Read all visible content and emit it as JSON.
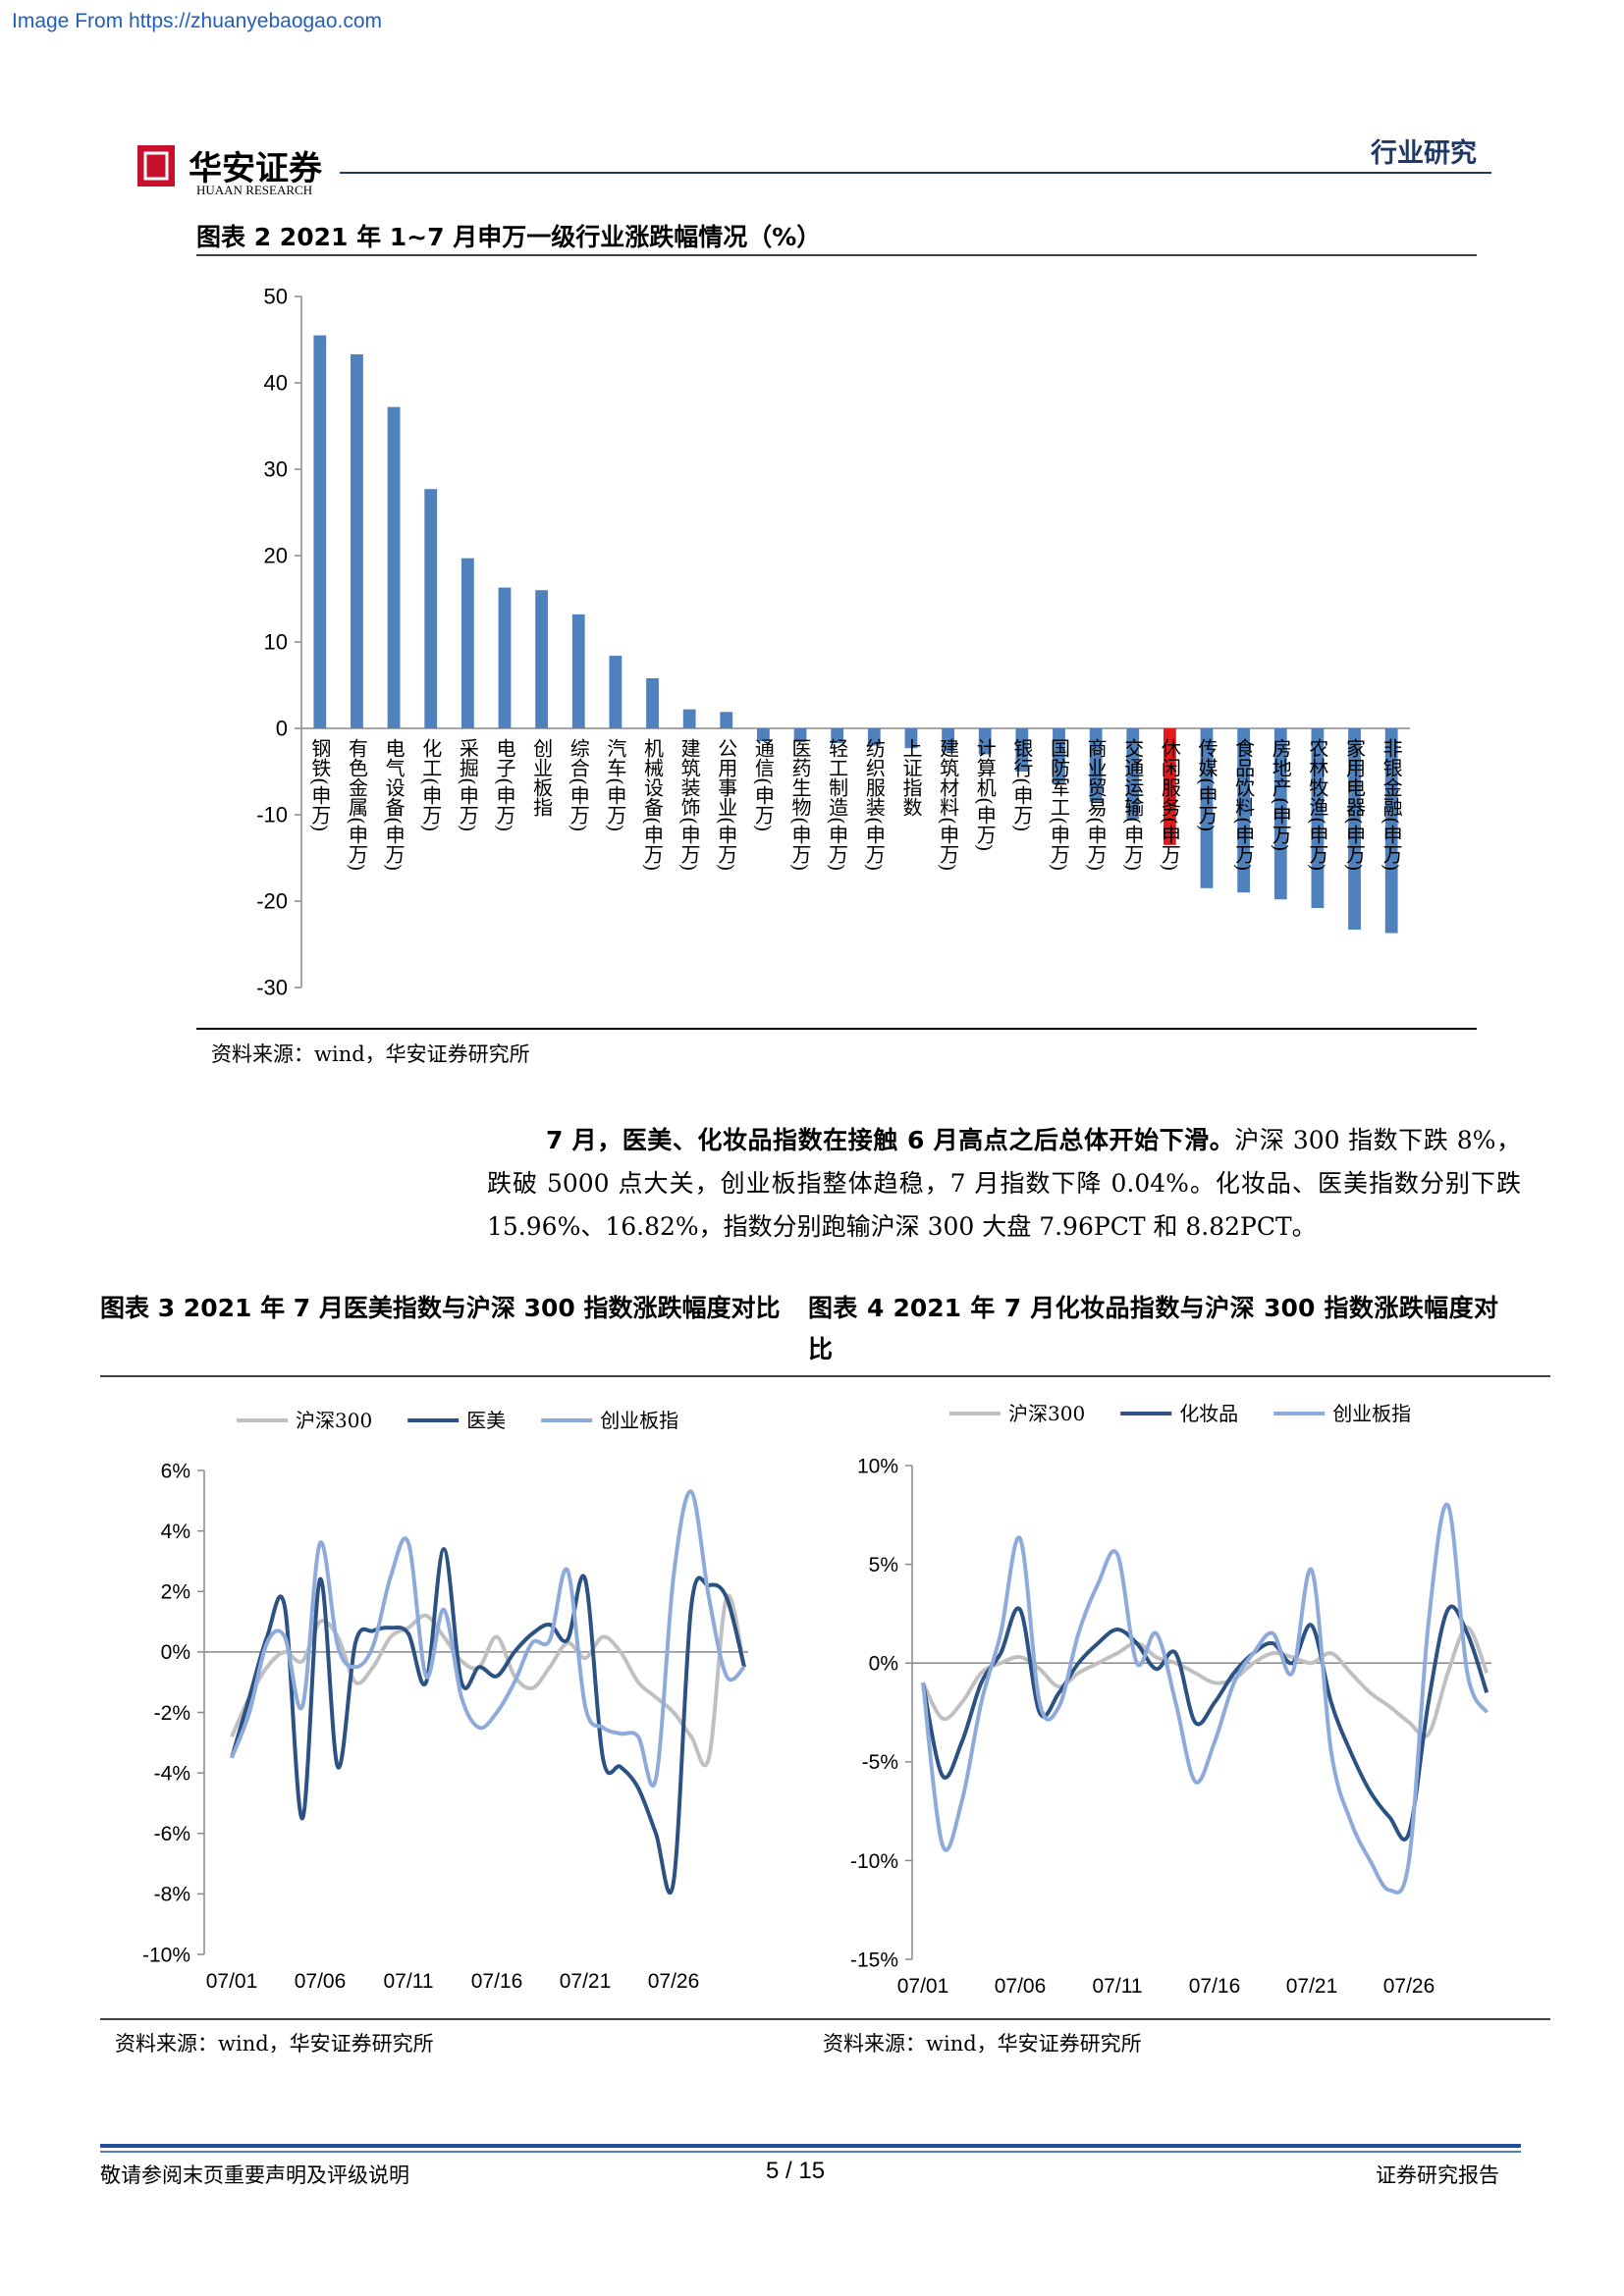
{
  "watermark": "Image From https://zhuanyebaogao.com",
  "header": {
    "logo": "华安证券",
    "logo_en": "HUAAN RESEARCH",
    "section": "行业研究"
  },
  "paragraph": {
    "lead": "7 月，医美、化妆品指数在接触 6 月高点之后总体开始下滑。",
    "text": "沪深 300 指数下跌 8%，跌破 5000 点大关，创业板指整体趋稳，7 月指数下降 0.04%。化妆品、医美指数分别下跌 15.96%、16.82%，指数分别跑输沪深 300 大盘 7.96PCT 和 8.82PCT。"
  },
  "chart_data": [
    {
      "type": "bar",
      "title": "图表 2 2021 年 1~7 月申万一级行业涨跌幅情况（%）",
      "source": "资料来源：wind，华安证券研究所",
      "categories": [
        "钢铁(申万)",
        "有色金属(申万)",
        "电气设备(申万)",
        "化工(申万)",
        "采掘(申万)",
        "电子(申万)",
        "创业板指",
        "综合(申万)",
        "汽车(申万)",
        "机械设备(申万)",
        "建筑装饰(申万)",
        "公用事业(申万)",
        "通信(申万)",
        "医药生物(申万)",
        "轻工制造(申万)",
        "纺织服装(申万)",
        "上证指数",
        "建筑材料(申万)",
        "计算机(申万)",
        "银行(申万)",
        "国防军工(申万)",
        "商业贸易(申万)",
        "交通运输(申万)",
        "休闲服务(申万)",
        "传媒(申万)",
        "食品饮料(申万)",
        "房地产(申万)",
        "农林牧渔(申万)",
        "家用电器(申万)",
        "非银金融(申万)"
      ],
      "values": [
        45.5,
        43.3,
        37.2,
        27.7,
        19.7,
        16.3,
        16.0,
        13.2,
        8.4,
        5.8,
        2.2,
        1.9,
        -1.5,
        -1.6,
        -1.7,
        -2.0,
        -2.3,
        -2.6,
        -3.0,
        -5.0,
        -6.5,
        -8.5,
        -10.5,
        -13.5,
        -18.5,
        -19.0,
        -19.8,
        -20.8,
        -23.3,
        -23.7
      ],
      "colors": [
        "#4f81bd",
        "#4f81bd",
        "#4f81bd",
        "#4f81bd",
        "#4f81bd",
        "#4f81bd",
        "#4f81bd",
        "#4f81bd",
        "#4f81bd",
        "#4f81bd",
        "#4f81bd",
        "#4f81bd",
        "#4f81bd",
        "#4f81bd",
        "#4f81bd",
        "#4f81bd",
        "#4f81bd",
        "#4f81bd",
        "#4f81bd",
        "#4f81bd",
        "#4f81bd",
        "#4f81bd",
        "#4f81bd",
        "#e31a1c",
        "#4f81bd",
        "#4f81bd",
        "#4f81bd",
        "#4f81bd",
        "#4f81bd",
        "#4f81bd"
      ],
      "ylim": [
        -30,
        50
      ],
      "yticks": [
        50,
        40,
        30,
        20,
        10,
        0,
        -10,
        -20,
        -30
      ]
    },
    {
      "type": "line",
      "title": "图表 3 2021 年 7 月医美指数与沪深 300 指数涨跌幅度对比",
      "source": "资料来源：wind，华安证券研究所",
      "categories": [
        "07/01",
        null,
        null,
        null,
        null,
        "07/06",
        null,
        null,
        null,
        null,
        "07/11",
        null,
        null,
        null,
        null,
        "07/16",
        null,
        null,
        null,
        null,
        "07/21",
        null,
        null,
        null,
        null,
        "07/26",
        null,
        null,
        null,
        null
      ],
      "series": [
        {
          "name": "沪深300",
          "color": "#c0c0c0",
          "values": [
            -2.8,
            -1.5,
            -0.5,
            0,
            -0.3,
            1.0,
            0.5,
            -1.0,
            -0.5,
            0.5,
            0.8,
            1.2,
            0.5,
            -0.3,
            -0.5,
            0.5,
            -0.8,
            -1.2,
            -0.5,
            0.3,
            -0.2,
            0.5,
            0,
            -1.0,
            -1.5,
            -2.0,
            -2.8,
            -3.5,
            1.8,
            -0.5
          ]
        },
        {
          "name": "医美",
          "color": "#2b5282",
          "values": [
            -3.5,
            -1.5,
            0.5,
            1.5,
            -5.5,
            2.4,
            -3.8,
            0.3,
            0.7,
            0.8,
            0.6,
            -1.0,
            3.4,
            -1.0,
            -0.5,
            -0.8,
            0,
            0.6,
            0.9,
            0.4,
            2.4,
            -3.5,
            -3.8,
            -4.5,
            -6.0,
            -7.6,
            1.5,
            2.2,
            1.8,
            -0.5
          ]
        },
        {
          "name": "创业板指",
          "color": "#8eaadb",
          "values": [
            -3.5,
            -2.0,
            0.3,
            0.5,
            -1.8,
            3.6,
            0.2,
            -0.5,
            0.2,
            2.5,
            3.6,
            -0.8,
            1.4,
            -1.5,
            -2.5,
            -2.0,
            -1.0,
            0.3,
            0.4,
            2.7,
            -1.8,
            -2.5,
            -2.7,
            -2.8,
            -4.2,
            2.5,
            5.3,
            1.8,
            -0.8,
            -0.5
          ]
        }
      ],
      "ylim": [
        -10,
        6
      ],
      "yticks": [
        {
          "value": 6,
          "label": "6%"
        },
        {
          "value": 4,
          "label": "4%"
        },
        {
          "value": 2,
          "label": "2%"
        },
        {
          "value": 0,
          "label": "0%"
        },
        {
          "value": -2,
          "label": "-2%"
        },
        {
          "value": -4,
          "label": "-4%"
        },
        {
          "value": -6,
          "label": "-6%"
        },
        {
          "value": -8,
          "label": "-8%"
        },
        {
          "value": -10,
          "label": "-10%"
        }
      ]
    },
    {
      "type": "line",
      "title": "图表 4 2021 年 7 月化妆品指数与沪深 300 指数涨跌幅度对比",
      "source": "资料来源：wind，华安证券研究所",
      "categories": [
        "07/01",
        null,
        null,
        null,
        null,
        "07/06",
        null,
        null,
        null,
        null,
        "07/11",
        null,
        null,
        null,
        null,
        "07/16",
        null,
        null,
        null,
        null,
        "07/21",
        null,
        null,
        null,
        null,
        "07/26",
        null,
        null,
        null,
        null
      ],
      "series": [
        {
          "name": "沪深300",
          "color": "#c0c0c0",
          "values": [
            -1,
            -2.8,
            -2.0,
            -0.5,
            0,
            0.3,
            -0.3,
            -1.2,
            -0.5,
            0,
            0.5,
            1.0,
            0.3,
            0,
            -0.5,
            -1.0,
            -0.8,
            0,
            0.5,
            0.3,
            0,
            0.5,
            -0.5,
            -1.5,
            -2.2,
            -3.0,
            -3.6,
            -0.5,
            1.8,
            -0.5
          ]
        },
        {
          "name": "化妆品",
          "color": "#2b5282",
          "values": [
            -1,
            -5.7,
            -4,
            -1,
            0.5,
            2.7,
            -2.5,
            -1.5,
            0,
            1,
            1.7,
            1,
            -0.3,
            0.5,
            -3,
            -2,
            -0.5,
            0.5,
            1,
            0,
            1.9,
            -2,
            -4.5,
            -6.5,
            -7.8,
            -8.6,
            -2,
            2.7,
            1.5,
            -1.5
          ]
        },
        {
          "name": "创业板指",
          "color": "#8eaadb",
          "values": [
            -1,
            -9.2,
            -7,
            -2,
            1.5,
            6.3,
            -2,
            -2.2,
            1.5,
            4,
            5.5,
            0,
            1.5,
            -2,
            -6,
            -4,
            -1,
            0.5,
            1.5,
            -0.5,
            4.7,
            -4.5,
            -8,
            -10,
            -11.5,
            -10,
            2,
            8,
            -0.5,
            -2.5
          ]
        }
      ],
      "ylim": [
        -15,
        10
      ],
      "yticks": [
        {
          "value": 10,
          "label": "10%"
        },
        {
          "value": 5,
          "label": "5%"
        },
        {
          "value": 0,
          "label": "0%"
        },
        {
          "value": -5,
          "label": "-5%"
        },
        {
          "value": -10,
          "label": "-10%"
        },
        {
          "value": -15,
          "label": "-15%"
        }
      ]
    }
  ],
  "footer": {
    "disclaimer": "敬请参阅末页重要声明及评级说明",
    "page": "5 / 15",
    "label": "证券研究报告"
  }
}
